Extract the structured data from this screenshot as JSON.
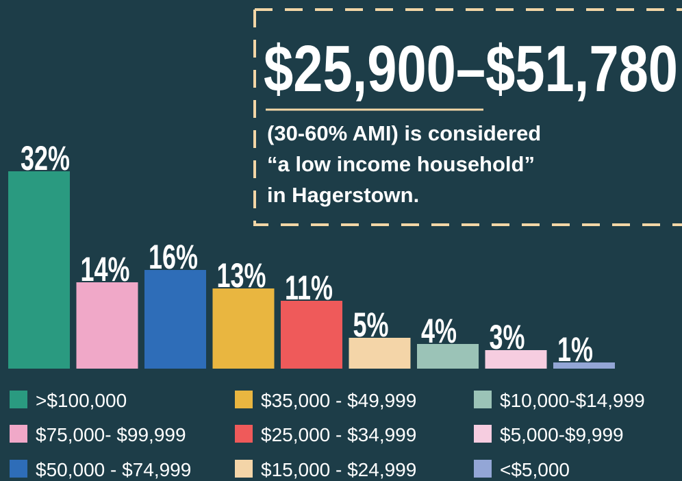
{
  "chart_data": {
    "type": "bar",
    "categories": [
      ">$100,000",
      "$75,000- $99,999",
      "$50,000 - $74,999",
      "$35,000 - $49,999",
      "$25,000 - $34,999",
      "$15,000 - $24,999",
      "$10,000-$14,999",
      "$5,000-$9,999",
      "<$5,000"
    ],
    "values": [
      32,
      14,
      16,
      13,
      11,
      5,
      4,
      3,
      1
    ],
    "value_labels": [
      "32%",
      "14%",
      "16%",
      "13%",
      "11%",
      "5%",
      "4%",
      "3%",
      "1%"
    ],
    "colors": [
      "#2a9a80",
      "#f0a8c8",
      "#2e6db8",
      "#e9b640",
      "#ef5a5a",
      "#f4d5a8",
      "#9bc3b7",
      "#f6cde0",
      "#93a6d6"
    ],
    "annotations": {
      "headline": "$25,900–$51,780",
      "lines": [
        "(30-60% AMI) is considered",
        "“a low income household”",
        "in Hagerstown."
      ]
    }
  }
}
